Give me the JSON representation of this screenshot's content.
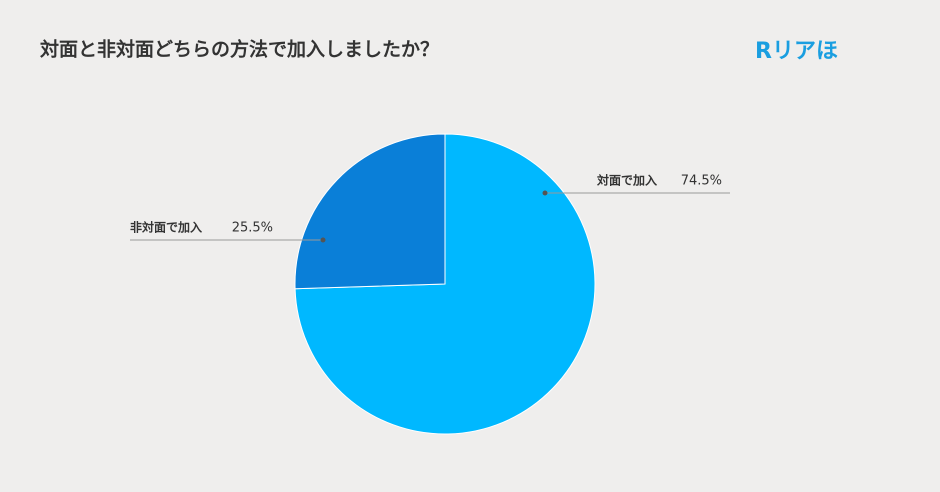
{
  "chart_data": {
    "type": "pie",
    "title": "対面と非対面どちらの方法で加入しましたか？",
    "logo": "Rリアほ",
    "categories": [
      "対面で加入",
      "非対面で加入"
    ],
    "values": [
      74.5,
      25.5
    ],
    "value_labels": [
      "74.5%",
      "25.5%"
    ],
    "colors": [
      "#00b8ff",
      "#0a7fd8"
    ]
  }
}
